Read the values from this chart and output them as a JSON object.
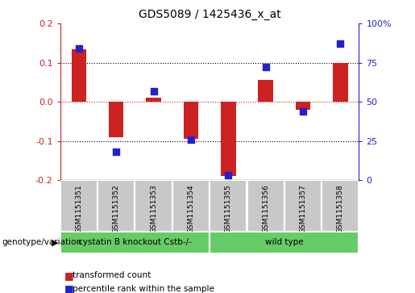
{
  "title": "GDS5089 / 1425436_x_at",
  "samples": [
    "GSM1151351",
    "GSM1151352",
    "GSM1151353",
    "GSM1151354",
    "GSM1151355",
    "GSM1151356",
    "GSM1151357",
    "GSM1151358"
  ],
  "red_values": [
    0.135,
    -0.09,
    0.01,
    -0.095,
    -0.19,
    0.055,
    -0.02,
    0.1
  ],
  "blue_values": [
    84,
    18,
    57,
    26,
    3,
    72,
    44,
    87
  ],
  "group1_label": "cystatin B knockout Cstb-/-",
  "group2_label": "wild type",
  "group1_count": 4,
  "group2_count": 4,
  "genotype_label": "genotype/variation",
  "legend_red": "transformed count",
  "legend_blue": "percentile rank within the sample",
  "ylim_left": [
    -0.2,
    0.2
  ],
  "ylim_right": [
    0,
    100
  ],
  "yticks_left": [
    -0.2,
    -0.1,
    0.0,
    0.1,
    0.2
  ],
  "yticks_right": [
    0,
    25,
    50,
    75,
    100
  ],
  "bar_width": 0.4,
  "dot_size": 40,
  "red_color": "#cc2222",
  "blue_color": "#2222cc",
  "green_fill": "#66cc66",
  "gray_fill": "#c8c8c8",
  "white": "#ffffff"
}
